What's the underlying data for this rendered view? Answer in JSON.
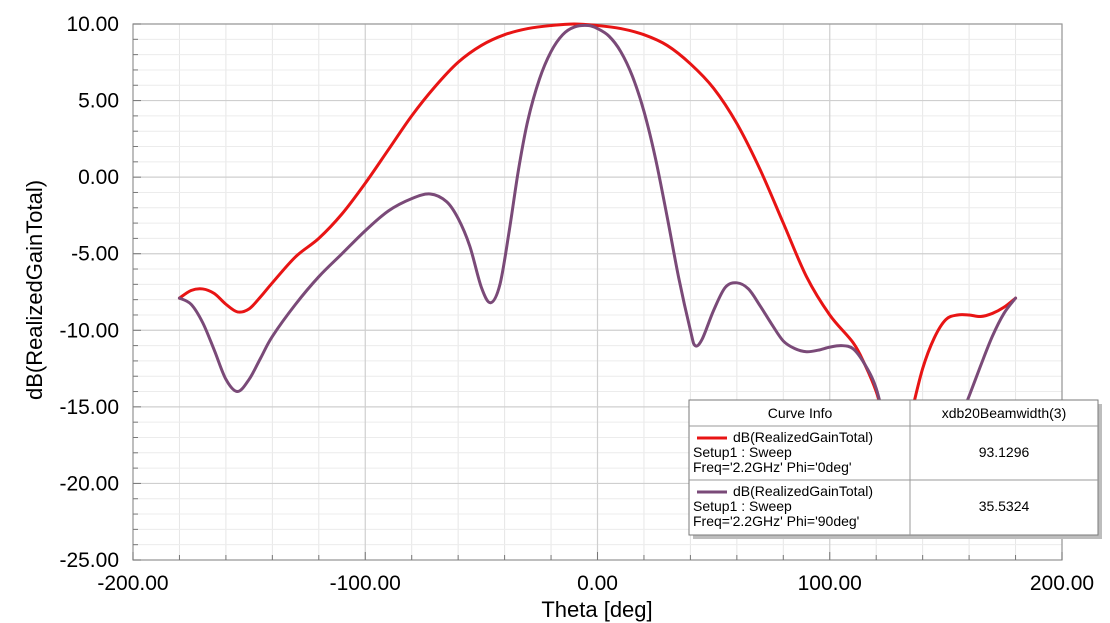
{
  "chart_data": {
    "type": "line",
    "xlabel": "Theta [deg]",
    "ylabel": "dB(RealizedGainTotal)",
    "xlim": [
      -200,
      200
    ],
    "ylim": [
      -25,
      10
    ],
    "x_ticks": [
      "-200.00",
      "-100.00",
      "0.00",
      "100.00",
      "200.00"
    ],
    "y_ticks": [
      "10.00",
      "5.00",
      "0.00",
      "-5.00",
      "-10.00",
      "-15.00",
      "-20.00",
      "-25.00"
    ],
    "grid": true,
    "series": [
      {
        "name": "dB(RealizedGainTotal)",
        "color": "#e81414",
        "points": [
          [
            -180,
            -7.9
          ],
          [
            -175,
            -7.4
          ],
          [
            -170,
            -7.3
          ],
          [
            -165,
            -7.6
          ],
          [
            -160,
            -8.3
          ],
          [
            -155,
            -8.8
          ],
          [
            -150,
            -8.6
          ],
          [
            -145,
            -7.8
          ],
          [
            -140,
            -6.9
          ],
          [
            -130,
            -5.2
          ],
          [
            -120,
            -4.0
          ],
          [
            -110,
            -2.4
          ],
          [
            -100,
            -0.4
          ],
          [
            -90,
            1.8
          ],
          [
            -80,
            4.0
          ],
          [
            -70,
            5.9
          ],
          [
            -60,
            7.5
          ],
          [
            -50,
            8.6
          ],
          [
            -40,
            9.3
          ],
          [
            -30,
            9.7
          ],
          [
            -20,
            9.9
          ],
          [
            -10,
            10.0
          ],
          [
            0,
            9.9
          ],
          [
            10,
            9.7
          ],
          [
            20,
            9.3
          ],
          [
            30,
            8.6
          ],
          [
            40,
            7.4
          ],
          [
            50,
            5.8
          ],
          [
            60,
            3.5
          ],
          [
            70,
            0.5
          ],
          [
            80,
            -3.0
          ],
          [
            90,
            -6.5
          ],
          [
            100,
            -9.0
          ],
          [
            110,
            -10.8
          ],
          [
            115,
            -12.2
          ],
          [
            120,
            -14.0
          ],
          [
            125,
            -16.5
          ],
          [
            130,
            -18.5
          ],
          [
            135,
            -15.5
          ],
          [
            140,
            -12.5
          ],
          [
            145,
            -10.5
          ],
          [
            150,
            -9.3
          ],
          [
            155,
            -9.0
          ],
          [
            160,
            -9.0
          ],
          [
            165,
            -9.1
          ],
          [
            170,
            -8.9
          ],
          [
            175,
            -8.5
          ],
          [
            180,
            -7.9
          ]
        ]
      },
      {
        "name": "dB(RealizedGainTotal)",
        "color": "#7a4a78",
        "points": [
          [
            -180,
            -7.9
          ],
          [
            -175,
            -8.3
          ],
          [
            -170,
            -9.5
          ],
          [
            -165,
            -11.3
          ],
          [
            -160,
            -13.2
          ],
          [
            -155,
            -14.0
          ],
          [
            -150,
            -13.2
          ],
          [
            -145,
            -11.8
          ],
          [
            -140,
            -10.4
          ],
          [
            -130,
            -8.3
          ],
          [
            -120,
            -6.5
          ],
          [
            -110,
            -5.0
          ],
          [
            -100,
            -3.5
          ],
          [
            -90,
            -2.2
          ],
          [
            -80,
            -1.4
          ],
          [
            -72,
            -1.1
          ],
          [
            -65,
            -1.6
          ],
          [
            -60,
            -2.7
          ],
          [
            -55,
            -4.5
          ],
          [
            -50,
            -7.2
          ],
          [
            -46,
            -8.2
          ],
          [
            -42,
            -7.0
          ],
          [
            -38,
            -3.5
          ],
          [
            -34,
            0.5
          ],
          [
            -30,
            3.7
          ],
          [
            -25,
            6.4
          ],
          [
            -20,
            8.2
          ],
          [
            -15,
            9.3
          ],
          [
            -10,
            9.8
          ],
          [
            -4,
            9.9
          ],
          [
            0,
            9.7
          ],
          [
            5,
            9.2
          ],
          [
            10,
            8.2
          ],
          [
            15,
            6.6
          ],
          [
            20,
            4.3
          ],
          [
            25,
            1.2
          ],
          [
            30,
            -2.6
          ],
          [
            35,
            -6.6
          ],
          [
            40,
            -10.0
          ],
          [
            42,
            -11.0
          ],
          [
            45,
            -10.6
          ],
          [
            50,
            -8.7
          ],
          [
            55,
            -7.2
          ],
          [
            60,
            -6.9
          ],
          [
            65,
            -7.3
          ],
          [
            70,
            -8.4
          ],
          [
            75,
            -9.6
          ],
          [
            80,
            -10.7
          ],
          [
            85,
            -11.2
          ],
          [
            90,
            -11.4
          ],
          [
            95,
            -11.3
          ],
          [
            100,
            -11.1
          ],
          [
            105,
            -11.0
          ],
          [
            110,
            -11.2
          ],
          [
            115,
            -12.2
          ],
          [
            120,
            -13.8
          ],
          [
            125,
            -16.8
          ],
          [
            130,
            -19.5
          ],
          [
            135,
            -21.5
          ],
          [
            140,
            -21.0
          ],
          [
            145,
            -19.8
          ],
          [
            150,
            -18.2
          ],
          [
            155,
            -16.2
          ],
          [
            160,
            -14.3
          ],
          [
            165,
            -12.3
          ],
          [
            170,
            -10.4
          ],
          [
            175,
            -8.9
          ],
          [
            180,
            -7.9
          ]
        ]
      }
    ],
    "legend": {
      "placement": "bottom-right",
      "header": [
        "Curve Info",
        "xdb20Beamwidth(3)"
      ],
      "entries": [
        {
          "lines": [
            "dB(RealizedGainTotal)",
            "Setup1 : Sweep",
            "Freq='2.2GHz' Phi='0deg'"
          ],
          "value": "93.1296",
          "color": "#e81414"
        },
        {
          "lines": [
            "dB(RealizedGainTotal)",
            "Setup1 : Sweep",
            "Freq='2.2GHz' Phi='90deg'"
          ],
          "value": "35.5324",
          "color": "#7a4a78"
        }
      ]
    }
  }
}
